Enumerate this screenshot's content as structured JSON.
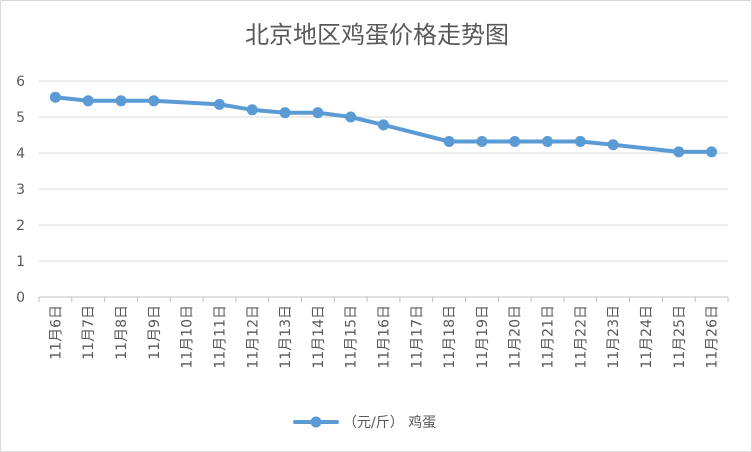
{
  "chart_data": {
    "type": "line",
    "title": "北京地区鸡蛋价格走势图",
    "xlabel": "",
    "ylabel": "",
    "categories": [
      "11月6日",
      "11月7日",
      "11月8日",
      "11月9日",
      "11月10日",
      "11月11日",
      "11月12日",
      "11月13日",
      "11月14日",
      "11月15日",
      "11月16日",
      "11月17日",
      "11月18日",
      "11月19日",
      "11月20日",
      "11月21日",
      "11月22日",
      "11月23日",
      "11月24日",
      "11月25日",
      "11月26日"
    ],
    "series": [
      {
        "name": "（元/斤） 鸡蛋",
        "values": [
          5.55,
          5.45,
          5.45,
          5.45,
          null,
          5.35,
          5.2,
          5.12,
          5.12,
          5.0,
          4.78,
          null,
          4.32,
          4.32,
          4.32,
          4.32,
          4.32,
          4.23,
          null,
          4.03,
          4.03
        ],
        "color": "#5b9bd5"
      }
    ],
    "ylim": [
      0,
      6
    ],
    "yticks": [
      0,
      1,
      2,
      3,
      4,
      5,
      6
    ],
    "grid": true,
    "legend": "bottom",
    "line_connects_gaps": true
  }
}
